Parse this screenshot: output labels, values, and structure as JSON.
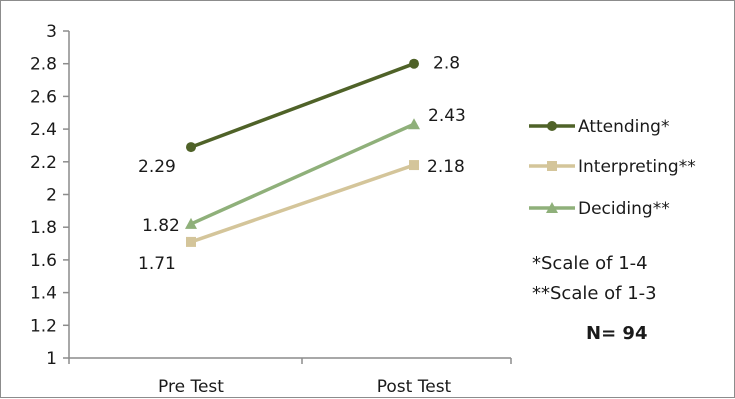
{
  "chart_data": {
    "type": "line",
    "categories": [
      "Pre Test",
      "Post Test"
    ],
    "ylim": [
      1,
      3
    ],
    "yticks": [
      "1",
      "1.2",
      "1.4",
      "1.6",
      "1.8",
      "2",
      "2.2",
      "2.4",
      "2.6",
      "2.8",
      "3"
    ],
    "grid": false,
    "legend_position": "right",
    "series": [
      {
        "name": "Attending*",
        "values": [
          2.29,
          2.8
        ],
        "labels": [
          "2.29",
          "2.8"
        ],
        "color": "#4f6228",
        "marker": "circle"
      },
      {
        "name": "Interpreting**",
        "values": [
          1.71,
          2.18
        ],
        "labels": [
          "1.71",
          "2.18"
        ],
        "color": "#d4c59a",
        "marker": "square"
      },
      {
        "name": "Deciding**",
        "values": [
          1.82,
          2.43
        ],
        "labels": [
          "1.82",
          "2.43"
        ],
        "color": "#8fb07a",
        "marker": "triangle"
      }
    ],
    "annotations": [
      "*Scale of 1-4",
      "**Scale of 1-3",
      "N= 94"
    ]
  }
}
